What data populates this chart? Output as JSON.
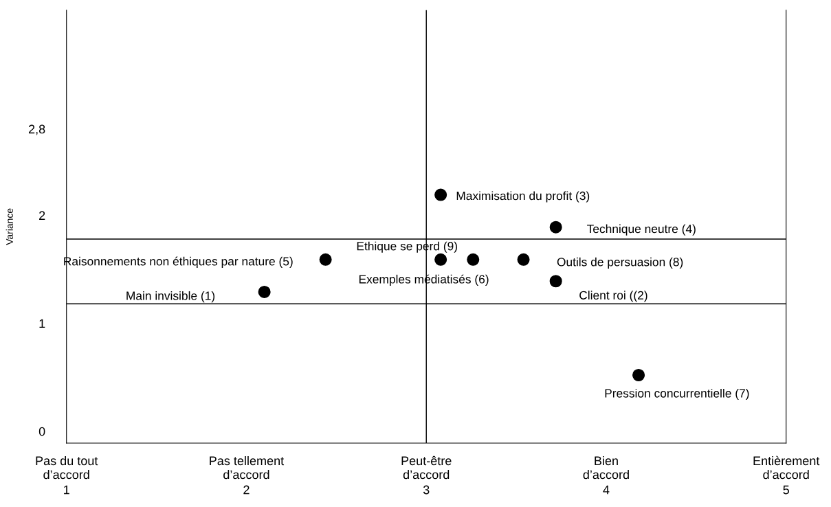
{
  "chart_data": {
    "type": "scatter",
    "ylabel": "Variance",
    "x": [
      2.1,
      2.44,
      3.08,
      3.26,
      3.54,
      3.08,
      3.72,
      3.72,
      4.18
    ],
    "values": [
      1.29,
      1.59,
      1.59,
      1.59,
      1.59,
      2.19,
      1.89,
      1.39,
      0.52
    ],
    "color": "#000000",
    "marker": "circle",
    "xlim": [
      1,
      5
    ],
    "ylim": [
      -0.11,
      3.9
    ],
    "xticks": [
      1,
      2,
      3,
      4,
      5
    ],
    "yticks": [
      0,
      1,
      2,
      {
        "value": 2.8,
        "label": "2,8"
      }
    ],
    "ref_lines": [
      {
        "axis": "y",
        "value": 1.78,
        "color": "#000000"
      },
      {
        "axis": "y",
        "value": 1.18,
        "color": "#000000"
      },
      {
        "axis": "x",
        "value": 3,
        "color": "#000000"
      }
    ],
    "annotations": [
      "Main invisible (1)",
      "Raisonnements non éthiques par nature (5)",
      "Ethique se perd (9)",
      "Exemples médiatisés (6)",
      "Outils de persuasion (8)",
      "Maximisation du profit (3)",
      "Technique neutre (4)",
      "Client roi ((2)",
      "Pression concurrentielle (7)",
      "Pas du tout\nd’accord",
      "Pas tellement\nd’accord",
      "Peut-être\nd’accord",
      "Bien\nd’accord",
      "Entièrement\nd’accord"
    ],
    "grid": false,
    "legend": false
  }
}
